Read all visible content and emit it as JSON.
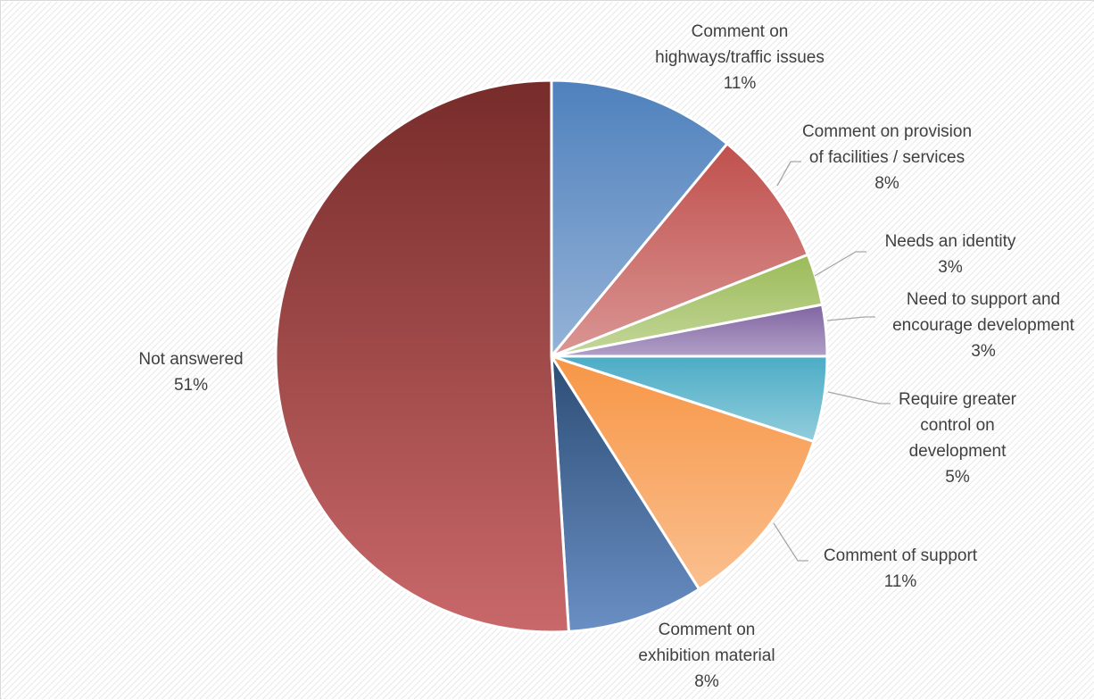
{
  "chart_data": {
    "type": "pie",
    "title": "",
    "start_angle_deg": 0,
    "direction": "clockwise",
    "legend": "none",
    "data_labels": "category name and percentage, outside with leader lines",
    "slices": [
      {
        "label_lines": [
          "Comment on",
          "highways/traffic issues"
        ],
        "category": "Comment on highways/traffic issues",
        "value": 11,
        "percent_label": "11%",
        "color": "#4f81bd",
        "color_light": "#95b3d7"
      },
      {
        "label_lines": [
          "Comment on provision",
          "of facilities / services"
        ],
        "category": "Comment on provision of facilities / services",
        "value": 8,
        "percent_label": "8%",
        "color": "#c0504d",
        "color_light": "#da9694"
      },
      {
        "label_lines": [
          "Needs an identity"
        ],
        "category": "Needs an identity",
        "value": 3,
        "percent_label": "3%",
        "color": "#9bbb59",
        "color_light": "#c4d79b"
      },
      {
        "label_lines": [
          "Need to support and",
          "encourage development"
        ],
        "category": "Need to support and encourage development",
        "value": 3,
        "percent_label": "3%",
        "color": "#8064a2",
        "color_light": "#b1a0c7"
      },
      {
        "label_lines": [
          "Require greater",
          "control on",
          "development"
        ],
        "category": "Require greater control on development",
        "value": 5,
        "percent_label": "5%",
        "color": "#4bacc6",
        "color_light": "#92cddc"
      },
      {
        "label_lines": [
          "Comment of support"
        ],
        "category": "Comment of support",
        "value": 11,
        "percent_label": "11%",
        "color": "#f79646",
        "color_light": "#fabf8f"
      },
      {
        "label_lines": [
          "Comment on",
          "exhibition material"
        ],
        "category": "Comment on exhibition material",
        "value": 8,
        "percent_label": "8%",
        "color": "#2c4d75",
        "color_light": "#6a8fc4"
      },
      {
        "label_lines": [
          "Not answered"
        ],
        "category": "Not answered",
        "value": 51,
        "percent_label": "51%",
        "color": "#772c2a",
        "color_light": "#c9686a"
      }
    ]
  }
}
